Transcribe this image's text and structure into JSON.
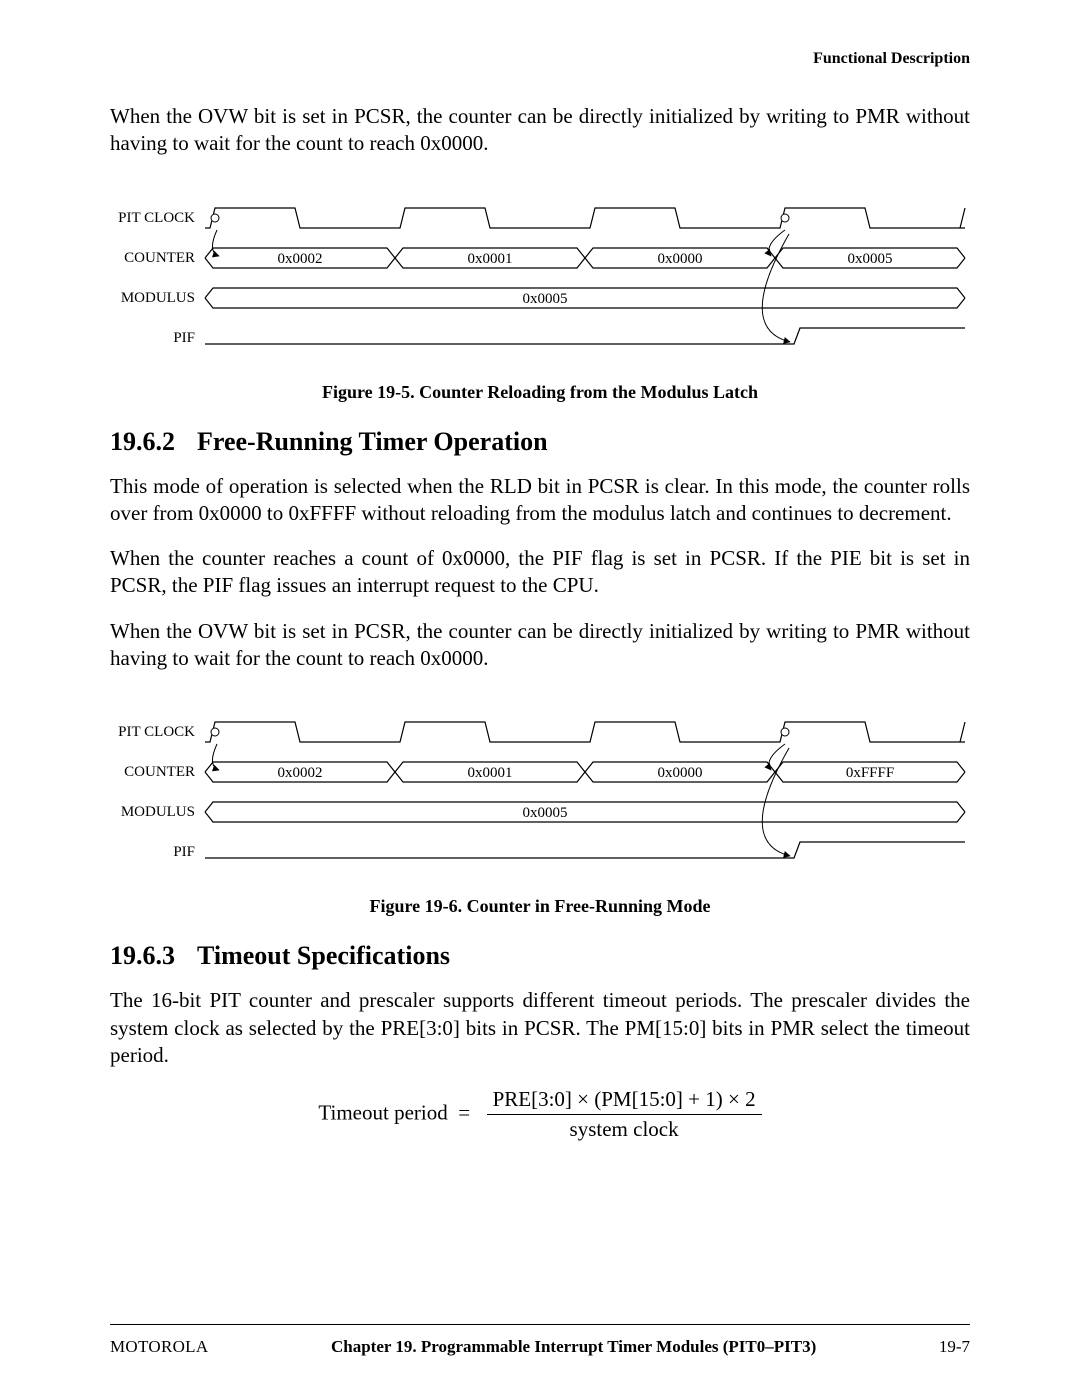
{
  "header": {
    "right": "Functional Description"
  },
  "intro_para": "When the OVW bit is set in PCSR, the counter can be directly initialized by writing to PMR without having to wait for the count to reach 0x0000.",
  "diagram1": {
    "labels": {
      "clock": "PIT CLOCK",
      "counter": "COUNTER",
      "modulus": "MODULUS",
      "pif": "PIF"
    },
    "counter_values": [
      "0x0002",
      "0x0001",
      "0x0000",
      "0x0005"
    ],
    "modulus_value": "0x0005",
    "caption": "Figure 19-5. Counter Reloading from the Modulus Latch",
    "colors": {
      "stroke": "#000000",
      "fill": "#ffffff"
    },
    "type": "timing-diagram"
  },
  "section_1962": {
    "number": "19.6.2",
    "title": "Free-Running Timer Operation",
    "para1": "This mode of operation is selected when the RLD bit in PCSR is clear. In this mode, the counter rolls over from 0x0000 to 0xFFFF without reloading from the modulus latch and continues to decrement.",
    "para2": "When the counter reaches a count of 0x0000, the PIF flag is set in PCSR. If the PIE bit is set in PCSR, the PIF flag issues an interrupt request to the CPU.",
    "para3": "When the OVW bit is set in PCSR, the counter can be directly initialized by writing to PMR without having to wait for the count to reach 0x0000."
  },
  "diagram2": {
    "labels": {
      "clock": "PIT CLOCK",
      "counter": "COUNTER",
      "modulus": "MODULUS",
      "pif": "PIF"
    },
    "counter_values": [
      "0x0002",
      "0x0001",
      "0x0000",
      "0xFFFF"
    ],
    "modulus_value": "0x0005",
    "caption": "Figure 19-6. Counter in Free-Running Mode",
    "colors": {
      "stroke": "#000000",
      "fill": "#ffffff"
    },
    "type": "timing-diagram"
  },
  "section_1963": {
    "number": "19.6.3",
    "title": "Timeout Specifications",
    "para1": "The 16-bit PIT counter and prescaler supports different timeout periods. The prescaler divides the system clock as selected by the PRE[3:0] bits in PCSR. The PM[15:0] bits in PMR select the timeout period."
  },
  "formula": {
    "lhs": "Timeout period",
    "eq": "=",
    "numerator": "PRE[3:0] × (PM[15:0] + 1) × 2",
    "denominator": "system clock"
  },
  "footer": {
    "left": "MOTOROLA",
    "center": "Chapter 19.  Programmable Interrupt Timer Modules (PIT0–PIT3)",
    "right": "19-7"
  }
}
